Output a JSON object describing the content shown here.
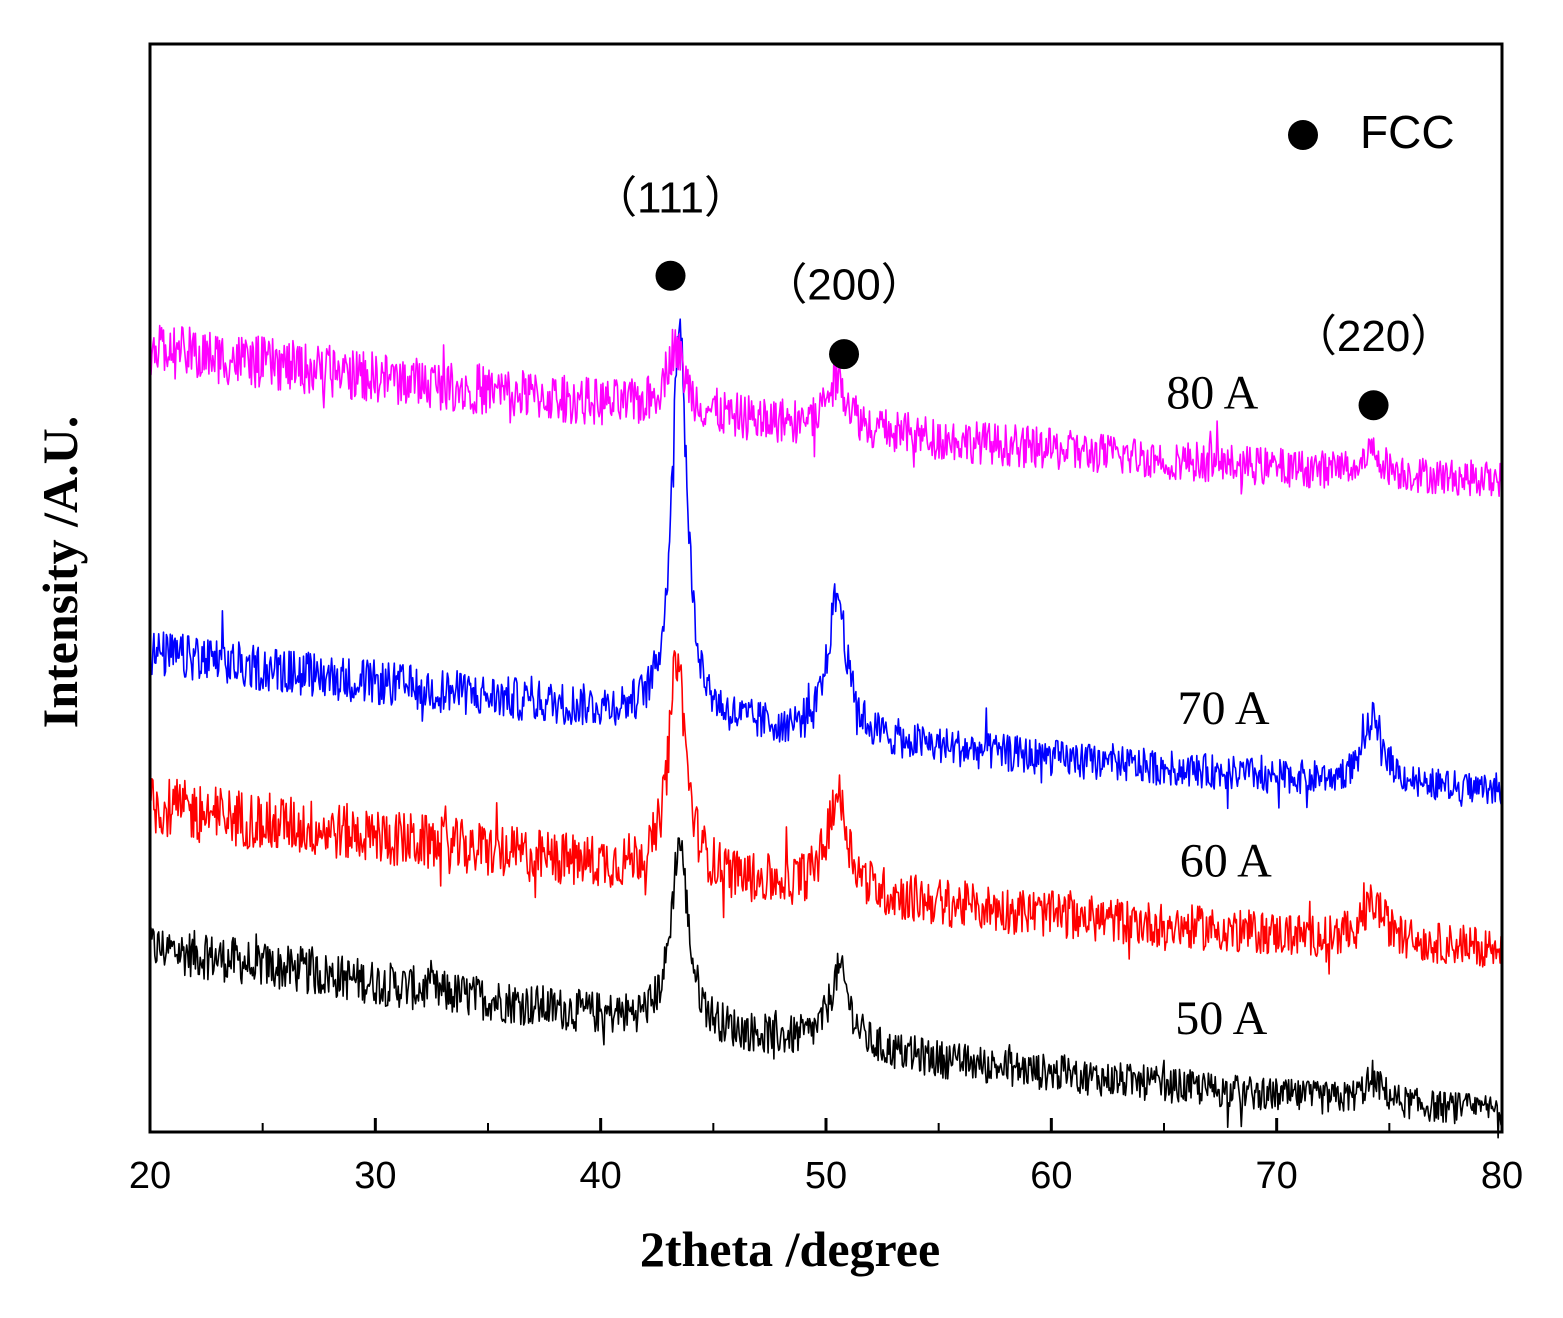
{
  "chart_data": {
    "type": "line",
    "title": "",
    "xlabel": "2theta /degree",
    "ylabel": "Intensity /A.U.",
    "xlim": [
      20,
      80
    ],
    "ylim": [
      0,
      1
    ],
    "x_ticks": [
      20,
      30,
      40,
      50,
      60,
      70,
      80
    ],
    "y_ticks_shown": false,
    "grid": false,
    "legend": {
      "position": "top-right",
      "marker": "filled-circle",
      "label": "FCC"
    },
    "series": [
      {
        "name": "50 A",
        "color": "#000000",
        "baseline_start": 0.17,
        "baseline_end": 0.02,
        "noise": 0.022,
        "peaks": [
          {
            "center": 43.5,
            "height": 0.17,
            "width": 0.45
          },
          {
            "center": 50.6,
            "height": 0.07,
            "width": 0.55
          },
          {
            "center": 74.3,
            "height": 0.02,
            "width": 0.6
          }
        ],
        "label_at": {
          "x": 65.5,
          "y": 0.09
        }
      },
      {
        "name": "60 A",
        "color": "#ff0000",
        "baseline_start": 0.3,
        "baseline_end": 0.17,
        "noise": 0.028,
        "peaks": [
          {
            "center": 43.4,
            "height": 0.2,
            "width": 0.45
          },
          {
            "center": 50.5,
            "height": 0.09,
            "width": 0.55
          },
          {
            "center": 74.3,
            "height": 0.035,
            "width": 0.6
          }
        ],
        "label_at": {
          "x": 65.7,
          "y": 0.235
        }
      },
      {
        "name": "70 A",
        "color": "#0000ff",
        "baseline_start": 0.44,
        "baseline_end": 0.315,
        "noise": 0.022,
        "peaks": [
          {
            "center": 43.5,
            "height": 0.37,
            "width": 0.4
          },
          {
            "center": 50.5,
            "height": 0.13,
            "width": 0.5
          },
          {
            "center": 74.3,
            "height": 0.06,
            "width": 0.55
          }
        ],
        "label_at": {
          "x": 65.6,
          "y": 0.375
        }
      },
      {
        "name": "80 A",
        "color": "#ff00ff",
        "baseline_start": 0.72,
        "baseline_end": 0.6,
        "noise": 0.025,
        "peaks": [
          {
            "center": 43.3,
            "height": 0.06,
            "width": 0.5
          },
          {
            "center": 50.5,
            "height": 0.045,
            "width": 0.6
          },
          {
            "center": 74.2,
            "height": 0.02,
            "width": 0.6
          }
        ],
        "label_at": {
          "x": 65.1,
          "y": 0.665
        }
      }
    ],
    "annotations": [
      {
        "text": "（111）",
        "marker_x": 43.1,
        "marker_y": 0.787,
        "text_y": 0.845
      },
      {
        "text": "（200）",
        "marker_x": 50.8,
        "marker_y": 0.715,
        "text_y": 0.765
      },
      {
        "text": "（220）",
        "marker_x": 74.3,
        "marker_y": 0.668,
        "text_y": 0.718
      }
    ]
  }
}
